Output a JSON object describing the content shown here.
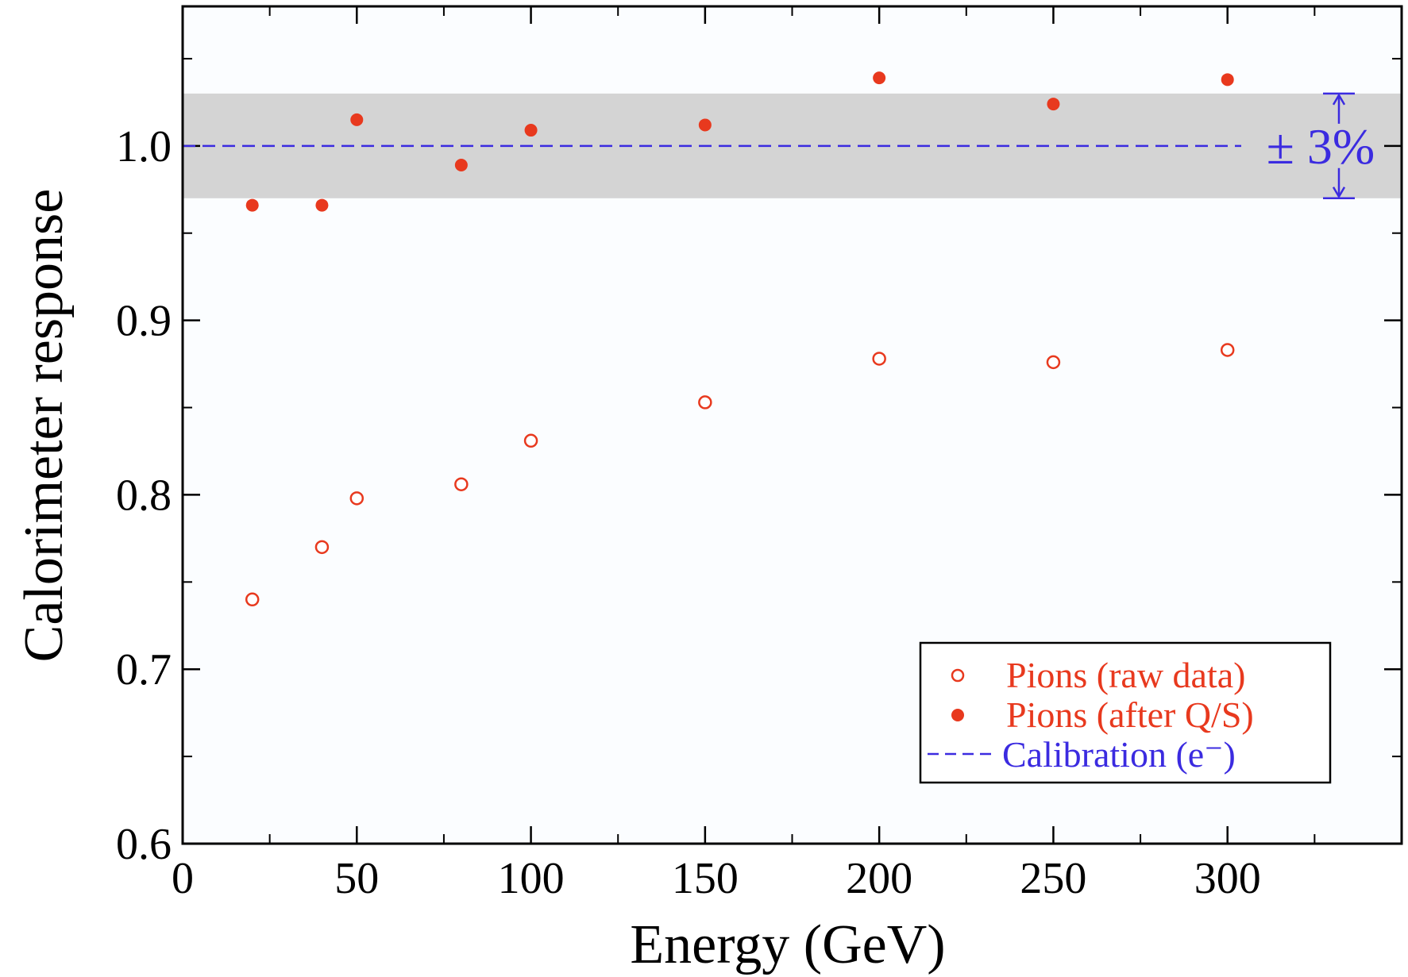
{
  "chart_data": {
    "type": "scatter",
    "xlabel": "Energy (GeV)",
    "ylabel": "Calorimeter response",
    "xlim": [
      0,
      350
    ],
    "ylim": [
      0.6,
      1.08
    ],
    "xticks": [
      0,
      50,
      100,
      150,
      200,
      250,
      300
    ],
    "xtick_labels": [
      "0",
      "50",
      "100",
      "150",
      "200",
      "250",
      "300"
    ],
    "yticks": [
      0.6,
      0.7,
      0.8,
      0.9,
      1.0
    ],
    "ytick_labels": [
      "0.6",
      "0.7",
      "0.8",
      "0.9",
      "1.0"
    ],
    "legend_position": "bottom-right",
    "series": [
      {
        "name": "Pions (raw data)",
        "marker": "open-circle",
        "color": "#e8391e",
        "x": [
          20,
          40,
          50,
          80,
          100,
          150,
          200,
          250,
          300
        ],
        "y": [
          0.74,
          0.77,
          0.798,
          0.806,
          0.831,
          0.853,
          0.878,
          0.876,
          0.883
        ]
      },
      {
        "name": "Pions (after Q/S)",
        "marker": "filled-circle",
        "color": "#e8391e",
        "x": [
          20,
          40,
          50,
          80,
          100,
          150,
          200,
          250,
          300
        ],
        "y": [
          0.966,
          0.966,
          1.015,
          0.989,
          1.009,
          1.012,
          1.039,
          1.024,
          1.038
        ]
      }
    ],
    "reference_line": {
      "name": "Calibration (e⁻)",
      "y": 1.0,
      "style": "dashed",
      "color": "#3b2be0"
    },
    "band": {
      "ymin": 0.97,
      "ymax": 1.03,
      "color": "#d4d4d4",
      "label": "± 3%",
      "label_color": "#3b2be0"
    }
  }
}
